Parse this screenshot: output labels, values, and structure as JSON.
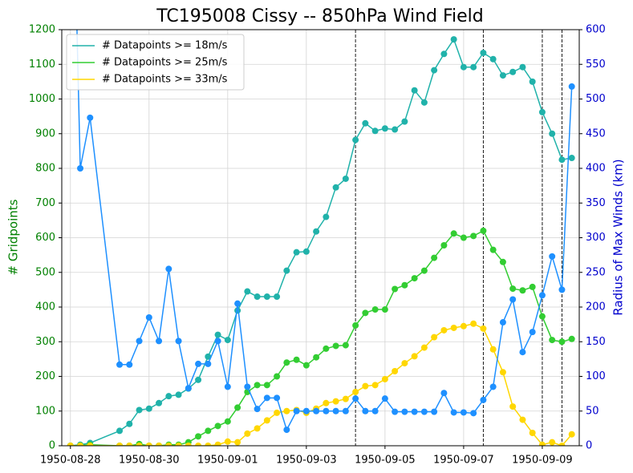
{
  "chart_data": {
    "type": "line",
    "title": "TC195008 Cissy -- 850hPa Wind Field",
    "ylabel": "# Gridpoints",
    "y2label": "Radius of Max Winds (km)",
    "ylabel_color": "#008000",
    "y2label_color": "#0000cd",
    "x": [
      0,
      0.25,
      0.5,
      1.25,
      1.5,
      1.75,
      2,
      2.25,
      2.5,
      2.75,
      3,
      3.25,
      3.5,
      3.75,
      4,
      4.25,
      4.5,
      4.75,
      5,
      5.25,
      5.5,
      5.75,
      6,
      6.25,
      6.5,
      6.75,
      7,
      7.25,
      7.5,
      7.75,
      8,
      8.25,
      8.5,
      8.75,
      9,
      9.25,
      9.5,
      9.75,
      10,
      10.25,
      10.5,
      10.75,
      11,
      11.25,
      11.5,
      11.75,
      12,
      12.25,
      12.5,
      12.75
    ],
    "xlim": [
      -0.22,
      12.94
    ],
    "xticks": [
      {
        "value": 0,
        "label": "1950-08-28"
      },
      {
        "value": 2,
        "label": "1950-08-30"
      },
      {
        "value": 4,
        "label": "1950-09-01"
      },
      {
        "value": 6,
        "label": "1950-09-03"
      },
      {
        "value": 8,
        "label": "1950-09-05"
      },
      {
        "value": 10,
        "label": "1950-09-07"
      },
      {
        "value": 12,
        "label": "1950-09-09"
      }
    ],
    "ylim": [
      0,
      1200
    ],
    "yticks": [
      0,
      100,
      200,
      300,
      400,
      500,
      600,
      700,
      800,
      900,
      1000,
      1100,
      1200
    ],
    "y2lim": [
      0,
      600
    ],
    "y2ticks": [
      0,
      50,
      100,
      150,
      200,
      250,
      300,
      350,
      400,
      450,
      500,
      550,
      600
    ],
    "grid": true,
    "legend": "upper left",
    "vlines": [
      7.25,
      10.5,
      12,
      12.5
    ],
    "series": [
      {
        "name": "# Datapoints >= 18m/s",
        "color": "#20b2aa",
        "values": [
          0,
          3,
          8,
          43,
          63,
          103,
          107,
          123,
          143,
          147,
          165,
          190,
          257,
          320,
          305,
          390,
          445,
          430,
          430,
          430,
          505,
          558,
          560,
          618,
          660,
          745,
          770,
          882,
          930,
          908,
          915,
          912,
          935,
          1025,
          990,
          1083,
          1130,
          1172,
          1092,
          1092,
          1133,
          1115,
          1068,
          1078,
          1092,
          1050,
          962,
          900,
          825,
          830
        ]
      },
      {
        "name": "# Datapoints >= 25m/s",
        "color": "#32cd32",
        "values": [
          0,
          1,
          3,
          0,
          0,
          5,
          0,
          0,
          3,
          3,
          10,
          27,
          43,
          57,
          70,
          110,
          155,
          175,
          175,
          200,
          240,
          248,
          232,
          255,
          280,
          288,
          290,
          347,
          383,
          393,
          393,
          452,
          463,
          483,
          505,
          542,
          578,
          612,
          600,
          605,
          620,
          565,
          530,
          453,
          448,
          458,
          373,
          305,
          300,
          308
        ]
      },
      {
        "name": "# Datapoints >= 33m/s",
        "color": "#ffd700",
        "values": [
          0,
          0,
          0,
          0,
          0,
          0,
          0,
          0,
          0,
          0,
          0,
          0,
          0,
          3,
          12,
          10,
          35,
          50,
          73,
          95,
          100,
          103,
          95,
          107,
          123,
          128,
          135,
          155,
          172,
          175,
          192,
          215,
          238,
          258,
          283,
          313,
          333,
          340,
          345,
          352,
          338,
          278,
          212,
          113,
          75,
          37,
          3,
          10,
          0,
          33
        ]
      },
      {
        "color": "#1e90ff",
        "axis": "y2",
        "values": [
          1000,
          400,
          473,
          117,
          117,
          151,
          185,
          151,
          255,
          151,
          83,
          118,
          118,
          151,
          85,
          205,
          85,
          53,
          69,
          69,
          23,
          50,
          50,
          50,
          50,
          50,
          50,
          68,
          50,
          50,
          68,
          49,
          49,
          49,
          49,
          49,
          76,
          48,
          48,
          47,
          66,
          85,
          178,
          211,
          135,
          164,
          217,
          273,
          225,
          518
        ]
      }
    ]
  }
}
